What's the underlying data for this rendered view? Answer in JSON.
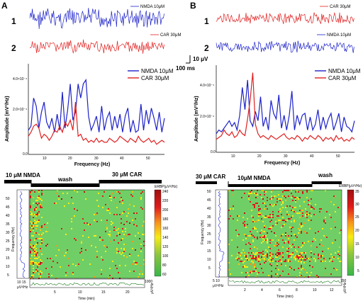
{
  "panel_A": {
    "label": "A",
    "traces": [
      {
        "number": "1",
        "legend": "NMDA 10μM",
        "color": "#1d22c8"
      },
      {
        "number": "2",
        "legend": "CAR 30μM",
        "color": "#e02020"
      }
    ],
    "scale_bar": {
      "amplitude": "10 μV",
      "time": "100 ms"
    },
    "spectrum": {
      "xlabel": "Frequency (Hz)",
      "ylabel": "Amplitude (mV²/Hz)",
      "yticks": [
        "4.0×10⁻⁴",
        "2.0×10⁻⁴",
        "0.0"
      ],
      "xticks": [
        "10",
        "20",
        "30",
        "40",
        "50"
      ],
      "legend": [
        "NMDA 10μM",
        "CAR 30μM"
      ]
    },
    "conditions": [
      "10 μM NMDA",
      "wash",
      "30 μM CAR"
    ],
    "spectrogram": {
      "ylabel": "Frequency (Hz)",
      "yticks": [
        "50",
        "45",
        "40",
        "35",
        "30",
        "25",
        "20",
        "15",
        "10",
        "5"
      ],
      "xlabel": "Time (min)",
      "xticks": [
        "5",
        "10",
        "15",
        "20"
      ],
      "colorbar_title": "ERBP(μV²/Hz)",
      "colorbar_ticks": [
        "240",
        "220",
        "200",
        "180",
        "160",
        "140",
        "120",
        "100",
        "80",
        "60"
      ],
      "left_ticks": "10 15",
      "left_unit": "μV²/Hz",
      "bottom_right": "1000",
      "side_unit": "μV²/Hz"
    }
  },
  "panel_B": {
    "label": "B",
    "traces": [
      {
        "number": "1",
        "legend": "CAR 30μM",
        "color": "#e02020"
      },
      {
        "number": "2",
        "legend": "NMDA 10μM",
        "color": "#1d22c8"
      }
    ],
    "spectrum": {
      "xlabel": "Frequency (Hz)",
      "ylabel": "Amplitude (mV²/Hz)",
      "yticks": [
        "4.0×10⁻⁴",
        "2.0×10⁻⁴",
        "0.0"
      ],
      "xticks": [
        "10",
        "20",
        "30",
        "40",
        "50"
      ],
      "legend": [
        "NMDA 10μM",
        "CAR 30μM"
      ]
    },
    "conditions": [
      "30 μM CAR",
      "10μM NMDA",
      "wash"
    ],
    "spectrogram": {
      "ylabel": "Frequency (Hz)",
      "yticks": [
        "50",
        "45",
        "40",
        "35",
        "30",
        "25",
        "20",
        "15",
        "10",
        "5"
      ],
      "xlabel": "Time (min)",
      "xticks": [
        "2",
        "4",
        "6",
        "8",
        "10",
        "12"
      ],
      "colorbar_title": "ERBP(μV²/Hz)",
      "colorbar_ticks": [
        "35",
        "30",
        "25",
        "20",
        "15",
        "10",
        "5"
      ],
      "left_ticks": "5 10",
      "left_unit": "μV²/Hz",
      "bottom_right": "150",
      "side_unit": "μV²/Hz"
    }
  },
  "chart_data": [
    {
      "type": "line",
      "panel": "A",
      "xlabel": "Frequency (Hz)",
      "ylabel": "Amplitude (mV²/Hz)",
      "xlim": [
        2,
        54
      ],
      "ylim": [
        0,
        0.00045
      ],
      "x": [
        2,
        3,
        4,
        5,
        6,
        7,
        8,
        9,
        10,
        11,
        12,
        13,
        14,
        15,
        16,
        17,
        18,
        19,
        20,
        21,
        22,
        23,
        24,
        25,
        26,
        27,
        28,
        29,
        30,
        31,
        32,
        33,
        34,
        35,
        36,
        37,
        38,
        39,
        40,
        41,
        42,
        43,
        44,
        45,
        46,
        47,
        48,
        49,
        50,
        51,
        52,
        53,
        54
      ],
      "series": [
        {
          "name": "NMDA 10μM",
          "color": "#1d22c8",
          "values": [
            0.00012,
            0.00014,
            0.00028,
            0.00024,
            0.00013,
            0.00021,
            0.00026,
            0.00016,
            0.00013,
            0.00018,
            0.00011,
            0.0002,
            0.00012,
            0.00031,
            0.00013,
            0.00022,
            0.00035,
            0.00017,
            0.00021,
            0.00035,
            0.00028,
            0.00035,
            0.00037,
            0.00019,
            0.00012,
            0.00015,
            0.00019,
            0.00011,
            0.00024,
            0.00012,
            0.00018,
            0.00021,
            0.00012,
            0.00019,
            0.00013,
            0.0002,
            0.00011,
            0.00019,
            0.00023,
            0.00011,
            0.00017,
            0.00011,
            0.00012,
            0.00025,
            0.00012,
            0.00022,
            0.00015,
            0.00023,
            0.00018,
            0.00012,
            0.00021,
            0.00011,
            0.00018
          ]
        },
        {
          "name": "CAR 30μM",
          "color": "#e02020",
          "values": [
            9e-05,
            0.00011,
            0.00014,
            0.00015,
            0.00013,
            8e-05,
            0.0001,
            9e-05,
            7e-05,
            9e-05,
            0.00012,
            0.00011,
            0.00014,
            0.00011,
            0.00016,
            0.00014,
            0.00017,
            0.00012,
            0.00026,
            9e-05,
            0.0001,
            7e-05,
            8e-05,
            6e-05,
            7e-05,
            6e-05,
            8e-05,
            6e-05,
            7e-05,
            6e-05,
            6e-05,
            8e-05,
            7e-05,
            6e-05,
            7e-05,
            9e-05,
            8e-05,
            7e-05,
            6e-05,
            8e-05,
            7e-05,
            6e-05,
            9e-05,
            7e-05,
            6e-05,
            7e-05,
            8e-05,
            6e-05,
            7e-05,
            5e-05,
            6e-05,
            7e-05,
            6e-05
          ]
        }
      ]
    },
    {
      "type": "line",
      "panel": "B",
      "xlabel": "Frequency (Hz)",
      "ylabel": "Amplitude (mV²/Hz)",
      "xlim": [
        2,
        55
      ],
      "ylim": [
        0,
        0.00047
      ],
      "x": [
        2,
        3,
        4,
        5,
        6,
        7,
        8,
        9,
        10,
        11,
        12,
        13,
        14,
        15,
        16,
        17,
        18,
        19,
        20,
        21,
        22,
        23,
        24,
        25,
        26,
        27,
        28,
        29,
        30,
        31,
        32,
        33,
        34,
        35,
        36,
        37,
        38,
        39,
        40,
        41,
        42,
        43,
        44,
        45,
        46,
        47,
        48,
        49,
        50,
        51,
        52,
        53,
        54,
        55
      ],
      "series": [
        {
          "name": "NMDA 10μM",
          "color": "#1d22c8",
          "values": [
            0.0001,
            0.00012,
            0.00011,
            0.00013,
            0.00015,
            0.00017,
            0.00014,
            0.00016,
            0.00012,
            0.0002,
            0.00035,
            0.00023,
            0.00039,
            0.00017,
            0.00014,
            0.00022,
            0.00017,
            0.0003,
            0.00014,
            0.00019,
            0.00012,
            0.00028,
            0.00021,
            0.00018,
            0.00031,
            0.00013,
            0.0002,
            0.00012,
            0.0002,
            0.00033,
            0.00012,
            0.0002,
            0.00015,
            0.0002,
            0.00021,
            0.00012,
            0.00019,
            0.00012,
            0.00015,
            0.00023,
            0.00012,
            0.00019,
            0.00013,
            0.00018,
            0.00021,
            0.00012,
            0.00016,
            0.00021,
            0.00011,
            0.00019,
            0.00014,
            0.00013,
            0.00011,
            0.00017
          ]
        },
        {
          "name": "CAR 30μM",
          "color": "#e02020",
          "values": [
            7e-05,
            8e-05,
            9e-05,
            0.00012,
            0.0001,
            9e-05,
            0.00011,
            8e-05,
            9e-05,
            0.00012,
            0.0001,
            9e-05,
            0.00018,
            0.00028,
            0.00043,
            0.00015,
            0.0001,
            8e-05,
            9e-05,
            8e-05,
            7e-05,
            9e-05,
            8e-05,
            7e-05,
            8e-05,
            9e-05,
            0.0001,
            8e-05,
            7e-05,
            8e-05,
            7e-05,
            9e-05,
            8e-05,
            6e-05,
            8e-05,
            7e-05,
            9e-05,
            8e-05,
            7e-05,
            9e-05,
            8e-05,
            6e-05,
            8e-05,
            7e-05,
            8e-05,
            6e-05,
            9e-05,
            7e-05,
            8e-05,
            6e-05,
            7e-05,
            6e-05,
            8e-05,
            7e-05
          ]
        }
      ]
    },
    {
      "type": "heatmap",
      "panel": "A",
      "xlabel": "Time (min)",
      "ylabel": "Frequency (Hz)",
      "xlim": [
        0,
        24
      ],
      "ylim": [
        2,
        50
      ],
      "colorbar_range": [
        60,
        240
      ]
    },
    {
      "type": "heatmap",
      "panel": "B",
      "xlabel": "Time (min)",
      "ylabel": "Frequency (Hz)",
      "xlim": [
        0,
        13
      ],
      "ylim": [
        2,
        50
      ],
      "colorbar_range": [
        5,
        35
      ]
    }
  ]
}
